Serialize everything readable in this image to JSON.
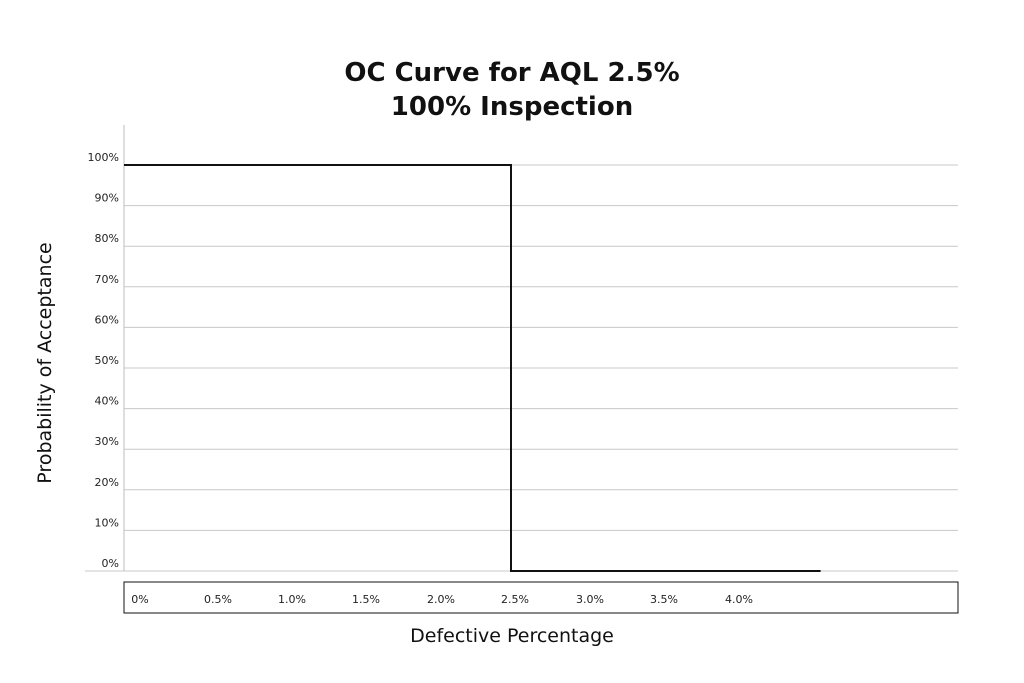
{
  "chart_data": {
    "type": "line",
    "title": "OC Curve for AQL 2.5%",
    "subtitle": "100% Inspection",
    "xlabel": "Defective Percentage",
    "ylabel": "Probability of Acceptance",
    "x_tick_labels": [
      "0%",
      "0.5%",
      "1.0%",
      "1.5%",
      "2.0%",
      "2.5%",
      "3.0%",
      "3.5%",
      "4.0%"
    ],
    "y_tick_labels": [
      "0%",
      "10%",
      "20%",
      "30%",
      "40%",
      "50%",
      "60%",
      "70%",
      "80%",
      "90%",
      "100%"
    ],
    "ylim": [
      0,
      100
    ],
    "grid": true,
    "series": [
      {
        "x": [
          0,
          2.5,
          2.5,
          4.5
        ],
        "y": [
          100,
          100,
          0,
          0
        ]
      }
    ],
    "line_color": "#111111",
    "grid_color": "#c8c8c8"
  }
}
